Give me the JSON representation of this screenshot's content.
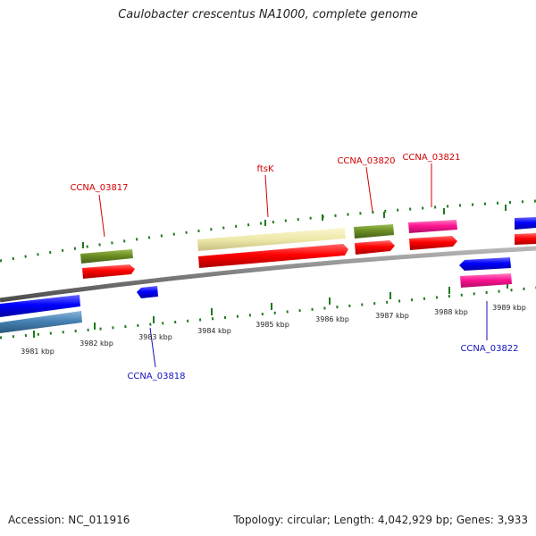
{
  "title": "Caulobacter crescentus NA1000, complete genome",
  "footer": {
    "accession": "Accession: NC_011916",
    "stats": "Topology: circular; Length: 4,042,929 bp; Genes: 3,933"
  },
  "scale_labels": [
    "3981 kbp",
    "3982 kbp",
    "3983 kbp",
    "3984 kbp",
    "3985 kbp",
    "3986 kbp",
    "3987 kbp",
    "3988 kbp",
    "3989 kbp"
  ],
  "gene_labels": {
    "CCNA_03817": "CCNA_03817",
    "ftsK": "ftsK",
    "CCNA_03820": "CCNA_03820",
    "CCNA_03821": "CCNA_03821",
    "CCNA_03818": "CCNA_03818",
    "CCNA_03822": "CCNA_03822"
  },
  "colors": {
    "backbone": "#7f7f7f",
    "tick": "#1e7a1e",
    "cds_forward": "#ff0000",
    "cds_reverse": "#0000ff",
    "gene_olive": "#6b8e23",
    "gene_yellow": "#eee8aa",
    "gene_pink": "#ff1493",
    "gene_steel": "#4682b4",
    "label_forward": "#d40000",
    "label_reverse": "#1010c0"
  }
}
